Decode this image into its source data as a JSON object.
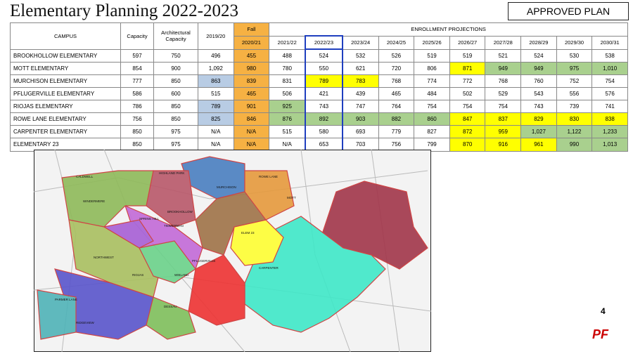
{
  "header": {
    "title": "Elementary Planning  2022-2023",
    "badge": "APPROVED PLAN"
  },
  "table": {
    "columns": [
      "CAMPUS",
      "Capacity",
      "Architectural Capacity",
      "2019/20",
      "2020/21",
      "2021/22",
      "2022/23",
      "2023/24",
      "2024/25",
      "2025/26",
      "2026/27",
      "2027/28",
      "2028/29",
      "2029/30",
      "2030/31"
    ],
    "fall_label": "Fall",
    "group_label": "ENROLLMENT PROJECTIONS",
    "fall_color": "#f6b143",
    "selected_color": "#1f3fbf",
    "rows": [
      [
        "BROOKHOLLOW ELEMENTARY",
        "597",
        "750",
        "496",
        "455",
        "488",
        "524",
        "532",
        "526",
        "519",
        "519",
        "521",
        "524",
        "530",
        "538"
      ],
      [
        "MOTT ELEMENTARY",
        "854",
        "900",
        "1,092",
        "980",
        "780",
        "550",
        "621",
        "720",
        "806",
        "871",
        "949",
        "949",
        "975",
        "1,010"
      ],
      [
        "MURCHISON ELEMENTARY",
        "777",
        "850",
        "863",
        "839",
        "831",
        "789",
        "783",
        "768",
        "774",
        "772",
        "768",
        "760",
        "752",
        "754"
      ],
      [
        "PFLUGERVILLE ELEMENTARY",
        "586",
        "600",
        "515",
        "465",
        "506",
        "421",
        "439",
        "465",
        "484",
        "502",
        "529",
        "543",
        "556",
        "576"
      ],
      [
        "RIOJAS ELEMENTARY",
        "786",
        "850",
        "789",
        "901",
        "925",
        "743",
        "747",
        "764",
        "754",
        "754",
        "754",
        "743",
        "739",
        "741"
      ],
      [
        "ROWE LANE ELEMENTARY",
        "756",
        "850",
        "825",
        "846",
        "876",
        "892",
        "903",
        "882",
        "860",
        "847",
        "837",
        "829",
        "830",
        "838"
      ],
      [
        "CARPENTER ELEMENTARY",
        "850",
        "975",
        "N/A",
        "N/A",
        "515",
        "580",
        "693",
        "779",
        "827",
        "872",
        "959",
        "1,027",
        "1,122",
        "1,233"
      ],
      [
        "ELEMENTARY 23",
        "850",
        "975",
        "N/A",
        "N/A",
        "N/A",
        "653",
        "703",
        "756",
        "799",
        "870",
        "916",
        "961",
        "990",
        "1,013"
      ]
    ],
    "cell_colors": [
      [
        null,
        null,
        null,
        "#f6b143",
        null,
        null,
        null,
        null,
        null,
        null,
        null,
        null,
        null,
        null
      ],
      [
        null,
        null,
        null,
        "#f6b143",
        null,
        null,
        null,
        null,
        null,
        "#ffff00",
        "#a9d08e",
        "#a9d08e",
        "#a9d08e",
        "#a9d08e"
      ],
      [
        null,
        null,
        "#b8cce4",
        "#f6b143",
        null,
        "#ffff00",
        "#ffff00",
        null,
        null,
        null,
        null,
        null,
        null,
        null
      ],
      [
        null,
        null,
        null,
        "#f6b143",
        null,
        null,
        null,
        null,
        null,
        null,
        null,
        null,
        null,
        null
      ],
      [
        null,
        null,
        "#b8cce4",
        "#f6b143",
        "#a9d08e",
        null,
        null,
        null,
        null,
        null,
        null,
        null,
        null,
        null
      ],
      [
        null,
        null,
        "#b8cce4",
        "#f6b143",
        "#a9d08e",
        "#a9d08e",
        "#a9d08e",
        "#a9d08e",
        "#a9d08e",
        "#ffff00",
        "#ffff00",
        "#ffff00",
        "#ffff00",
        "#ffff00"
      ],
      [
        null,
        null,
        null,
        "#f6b143",
        null,
        null,
        null,
        null,
        null,
        "#ffff00",
        "#ffff00",
        "#a9d08e",
        "#a9d08e",
        "#a9d08e"
      ],
      [
        null,
        null,
        null,
        "#f6b143",
        null,
        null,
        null,
        null,
        null,
        "#ffff00",
        "#ffff00",
        "#ffff00",
        "#a9d08e",
        "#a9d08e"
      ]
    ]
  },
  "map": {
    "labels": [
      "HIGHLAND PARK",
      "CALDWELL",
      "WINDERMERE",
      "MURCHISON",
      "ROWE LANE",
      "MOTT",
      "BROOKHOLLOW",
      "SPRING HILL",
      "TIMMERMAN",
      "PFLUGERVILLE",
      "ELEM 23",
      "CARPENTER",
      "NORTHWEST",
      "RIOJAS",
      "WIELAND",
      "DESSAU",
      "PARMER LANE",
      "RIDGEVIEW"
    ]
  },
  "footer": {
    "page": "4",
    "logo": "PF"
  }
}
